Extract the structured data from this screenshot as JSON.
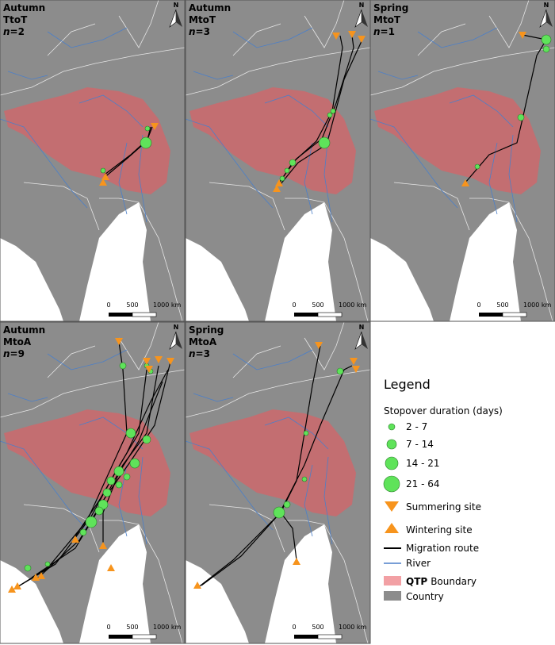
{
  "panels": [
    {
      "season": "Autumn",
      "route": "TtoT",
      "n": "n=2"
    },
    {
      "season": "Autumn",
      "route": "MtoT",
      "n": "n=3"
    },
    {
      "season": "Spring",
      "route": "MtoT",
      "n": "n=1"
    },
    {
      "season": "Autumn",
      "route": "MtoA",
      "n": "n=9"
    },
    {
      "season": "Spring",
      "route": "MtoA",
      "n": "n=3"
    }
  ],
  "north": "N",
  "scale_labels": [
    "0",
    "500",
    "1000 km"
  ],
  "legend": {
    "title": "Legend",
    "stopover_title": "Stopover duration (days)",
    "sizes": [
      "2 - 7",
      "7 - 14",
      "14 - 21",
      "21 - 64"
    ],
    "summering": "Summering site",
    "wintering": "Wintering site",
    "route": "Migration route",
    "river": "River",
    "qtp": {
      "bold": "QTP",
      "text": "Boundary"
    },
    "country": "Country"
  }
}
